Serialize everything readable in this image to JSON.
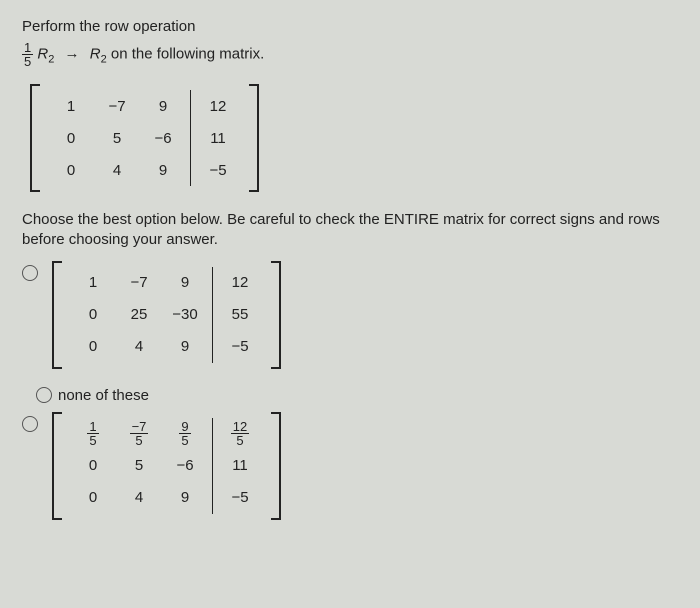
{
  "title": "Perform the row operation",
  "operation": {
    "frac_num": "1",
    "frac_den": "5",
    "R": "R",
    "sub2a": "2",
    "arrow": "→",
    "sub2b": "2",
    "tail": " on the following matrix."
  },
  "matrix_given": {
    "left": [
      [
        "1",
        "−7",
        "9"
      ],
      [
        "0",
        "5",
        "−6"
      ],
      [
        "0",
        "4",
        "9"
      ]
    ],
    "right": [
      "12",
      "11",
      "−5"
    ]
  },
  "instruction2": "Choose the best option below. Be careful to check the ENTIRE matrix for correct signs and rows before choosing your answer.",
  "option_a": {
    "left": [
      [
        "1",
        "−7",
        "9"
      ],
      [
        "0",
        "25",
        "−30"
      ],
      [
        "0",
        "4",
        "9"
      ]
    ],
    "right": [
      "12",
      "55",
      "−5"
    ]
  },
  "none_label": "none of these",
  "option_c": {
    "left_fracs": [
      [
        {
          "n": "1",
          "d": "5"
        },
        {
          "n": "−7",
          "d": "5"
        },
        {
          "n": "9",
          "d": "5"
        }
      ],
      [
        {
          "t": "0"
        },
        {
          "t": "5"
        },
        {
          "t": "−6"
        }
      ],
      [
        {
          "t": "0"
        },
        {
          "t": "4"
        },
        {
          "t": "9"
        }
      ]
    ],
    "right_fracs": [
      {
        "n": "12",
        "d": "5"
      },
      {
        "t": "11"
      },
      {
        "t": "−5"
      }
    ]
  },
  "colors": {
    "bg": "#d8dad5",
    "text": "#222"
  }
}
